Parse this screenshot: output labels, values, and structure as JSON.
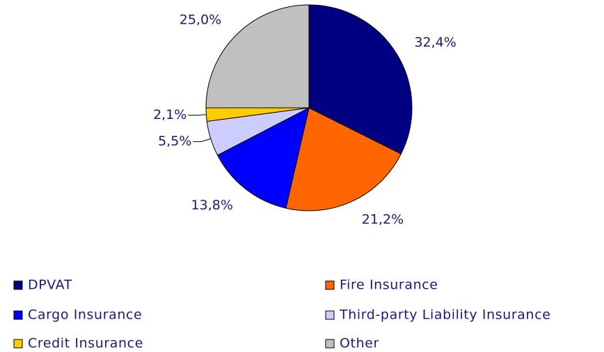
{
  "chart_data": {
    "type": "pie",
    "categories": [
      "DPVAT",
      "Fire Insurance",
      "Cargo Insurance",
      "Third-party Liability Insurance",
      "Credit Insurance",
      "Other"
    ],
    "values": [
      32.4,
      21.2,
      13.8,
      5.5,
      2.1,
      25.0
    ],
    "value_labels": [
      "32,4%",
      "21,2%",
      "13,8%",
      "5,5%",
      "2,1%",
      "25,0%"
    ],
    "colors": [
      "#000080",
      "#ff6600",
      "#0000ff",
      "#ccccff",
      "#ffcc00",
      "#c0c0c0"
    ],
    "legend": "bottom"
  }
}
